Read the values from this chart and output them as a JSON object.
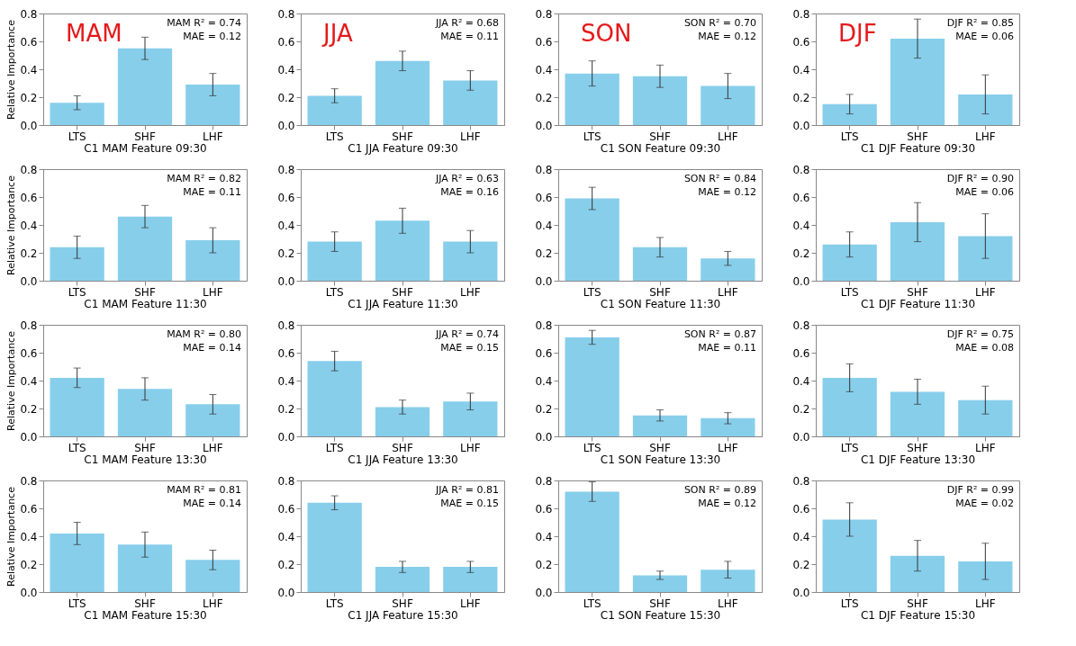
{
  "chart_data": [
    {
      "type": "bar",
      "categories": [
        "LTS",
        "SHF",
        "LHF"
      ],
      "values": [
        0.16,
        0.55,
        0.29
      ],
      "errors": [
        0.05,
        0.08,
        0.08
      ],
      "color": "#87ceeb",
      "xlabel": "C1 MAM Feature 09:30",
      "ylabel": "Relative Importance",
      "ylim": [
        0,
        0.8
      ],
      "yticks": [
        {
          "value": 0,
          "label": "0.0"
        },
        0.2,
        0.4,
        0.6,
        0.8
      ],
      "grid": false,
      "annotations": [
        "MAM",
        "MAM R² = 0.74",
        "MAE = 0.12"
      ]
    },
    {
      "type": "bar",
      "categories": [
        "LTS",
        "SHF",
        "LHF"
      ],
      "values": [
        0.21,
        0.46,
        0.32
      ],
      "errors": [
        0.05,
        0.07,
        0.07
      ],
      "color": "#87ceeb",
      "xlabel": "C1 JJA Feature 09:30",
      "ylim": [
        0,
        0.8
      ],
      "yticks": [
        {
          "value": 0,
          "label": "0.0"
        },
        0.2,
        0.4,
        0.6,
        0.8
      ],
      "grid": false,
      "annotations": [
        "JJA",
        "JJA R² = 0.68",
        "MAE = 0.11"
      ]
    },
    {
      "type": "bar",
      "categories": [
        "LTS",
        "SHF",
        "LHF"
      ],
      "values": [
        0.37,
        0.35,
        0.28
      ],
      "errors": [
        0.09,
        0.08,
        0.09
      ],
      "color": "#87ceeb",
      "xlabel": "C1 SON Feature 09:30",
      "ylim": [
        0,
        0.8
      ],
      "yticks": [
        {
          "value": 0,
          "label": "0.0"
        },
        0.2,
        0.4,
        0.6,
        0.8
      ],
      "grid": false,
      "annotations": [
        "SON",
        "SON R² = 0.70",
        "MAE = 0.12"
      ]
    },
    {
      "type": "bar",
      "categories": [
        "LTS",
        "SHF",
        "LHF"
      ],
      "values": [
        0.15,
        0.62,
        0.22
      ],
      "errors": [
        0.07,
        0.14,
        0.14
      ],
      "color": "#87ceeb",
      "xlabel": "C1 DJF Feature 09:30",
      "ylim": [
        0,
        0.8
      ],
      "yticks": [
        {
          "value": 0,
          "label": "0.0"
        },
        0.2,
        0.4,
        0.6,
        0.8
      ],
      "grid": false,
      "annotations": [
        "DJF",
        "DJF R² = 0.85",
        "MAE = 0.06"
      ]
    },
    {
      "type": "bar",
      "categories": [
        "LTS",
        "SHF",
        "LHF"
      ],
      "values": [
        0.24,
        0.46,
        0.29
      ],
      "errors": [
        0.08,
        0.08,
        0.09
      ],
      "color": "#87ceeb",
      "xlabel": "C1 MAM Feature 11:30",
      "ylabel": "Relative Importance",
      "ylim": [
        0,
        0.8
      ],
      "yticks": [
        {
          "value": 0,
          "label": "0.0"
        },
        0.2,
        0.4,
        0.6,
        0.8
      ],
      "grid": false,
      "annotations": [
        "MAM R² = 0.82",
        "MAE = 0.11"
      ]
    },
    {
      "type": "bar",
      "categories": [
        "LTS",
        "SHF",
        "LHF"
      ],
      "values": [
        0.28,
        0.43,
        0.28
      ],
      "errors": [
        0.07,
        0.09,
        0.08
      ],
      "color": "#87ceeb",
      "xlabel": "C1 JJA Feature 11:30",
      "ylim": [
        0,
        0.8
      ],
      "yticks": [
        {
          "value": 0,
          "label": "0.0"
        },
        0.2,
        0.4,
        0.6,
        0.8
      ],
      "grid": false,
      "annotations": [
        "JJA R² = 0.63",
        "MAE = 0.16"
      ]
    },
    {
      "type": "bar",
      "categories": [
        "LTS",
        "SHF",
        "LHF"
      ],
      "values": [
        0.59,
        0.24,
        0.16
      ],
      "errors": [
        0.08,
        0.07,
        0.05
      ],
      "color": "#87ceeb",
      "xlabel": "C1 SON Feature 11:30",
      "ylim": [
        0,
        0.8
      ],
      "yticks": [
        {
          "value": 0,
          "label": "0.0"
        },
        0.2,
        0.4,
        0.6,
        0.8
      ],
      "grid": false,
      "annotations": [
        "SON R² = 0.84",
        "MAE = 0.12"
      ]
    },
    {
      "type": "bar",
      "categories": [
        "LTS",
        "SHF",
        "LHF"
      ],
      "values": [
        0.26,
        0.42,
        0.32
      ],
      "errors": [
        0.09,
        0.14,
        0.16
      ],
      "color": "#87ceeb",
      "xlabel": "C1 DJF Feature 11:30",
      "ylim": [
        0,
        0.8
      ],
      "yticks": [
        {
          "value": 0,
          "label": "0.0"
        },
        0.2,
        0.4,
        0.6,
        0.8
      ],
      "grid": false,
      "annotations": [
        "DJF R² = 0.90",
        "MAE = 0.06"
      ]
    },
    {
      "type": "bar",
      "categories": [
        "LTS",
        "SHF",
        "LHF"
      ],
      "values": [
        0.42,
        0.34,
        0.23
      ],
      "errors": [
        0.07,
        0.08,
        0.07
      ],
      "color": "#87ceeb",
      "xlabel": "C1 MAM Feature 13:30",
      "ylabel": "Relative Importance",
      "ylim": [
        0,
        0.8
      ],
      "yticks": [
        {
          "value": 0,
          "label": "0.0"
        },
        0.2,
        0.4,
        0.6,
        0.8
      ],
      "grid": false,
      "annotations": [
        "MAM R² = 0.80",
        "MAE = 0.14"
      ]
    },
    {
      "type": "bar",
      "categories": [
        "LTS",
        "SHF",
        "LHF"
      ],
      "values": [
        0.54,
        0.21,
        0.25
      ],
      "errors": [
        0.07,
        0.05,
        0.06
      ],
      "color": "#87ceeb",
      "xlabel": "C1 JJA Feature 13:30",
      "ylim": [
        0,
        0.8
      ],
      "yticks": [
        {
          "value": 0,
          "label": "0.0"
        },
        0.2,
        0.4,
        0.6,
        0.8
      ],
      "grid": false,
      "annotations": [
        "JJA R² = 0.74",
        "MAE = 0.15"
      ]
    },
    {
      "type": "bar",
      "categories": [
        "LTS",
        "SHF",
        "LHF"
      ],
      "values": [
        0.71,
        0.15,
        0.13
      ],
      "errors": [
        0.05,
        0.04,
        0.04
      ],
      "color": "#87ceeb",
      "xlabel": "C1 SON Feature 13:30",
      "ylim": [
        0,
        0.8
      ],
      "yticks": [
        {
          "value": 0,
          "label": "0.0"
        },
        0.2,
        0.4,
        0.6,
        0.8
      ],
      "grid": false,
      "annotations": [
        "SON R² = 0.87",
        "MAE = 0.11"
      ]
    },
    {
      "type": "bar",
      "categories": [
        "LTS",
        "SHF",
        "LHF"
      ],
      "values": [
        0.42,
        0.32,
        0.26
      ],
      "errors": [
        0.1,
        0.09,
        0.1
      ],
      "color": "#87ceeb",
      "xlabel": "C1 DJF Feature 13:30",
      "ylim": [
        0,
        0.8
      ],
      "yticks": [
        {
          "value": 0,
          "label": "0.0"
        },
        0.2,
        0.4,
        0.6,
        0.8
      ],
      "grid": false,
      "annotations": [
        "DJF R² = 0.75",
        "MAE = 0.08"
      ]
    },
    {
      "type": "bar",
      "categories": [
        "LTS",
        "SHF",
        "LHF"
      ],
      "values": [
        0.42,
        0.34,
        0.23
      ],
      "errors": [
        0.08,
        0.09,
        0.07
      ],
      "color": "#87ceeb",
      "xlabel": "C1 MAM Feature 15:30",
      "ylabel": "Relative Importance",
      "ylim": [
        0,
        0.8
      ],
      "yticks": [
        {
          "value": 0,
          "label": "0.0"
        },
        0.2,
        0.4,
        0.6,
        0.8
      ],
      "grid": false,
      "annotations": [
        "MAM R² = 0.81",
        "MAE = 0.14"
      ]
    },
    {
      "type": "bar",
      "categories": [
        "LTS",
        "SHF",
        "LHF"
      ],
      "values": [
        0.64,
        0.18,
        0.18
      ],
      "errors": [
        0.05,
        0.04,
        0.04
      ],
      "color": "#87ceeb",
      "xlabel": "C1 JJA Feature 15:30",
      "ylim": [
        0,
        0.8
      ],
      "yticks": [
        {
          "value": 0,
          "label": "0.0"
        },
        0.2,
        0.4,
        0.6,
        0.8
      ],
      "grid": false,
      "annotations": [
        "JJA R² = 0.81",
        "MAE = 0.15"
      ]
    },
    {
      "type": "bar",
      "categories": [
        "LTS",
        "SHF",
        "LHF"
      ],
      "values": [
        0.72,
        0.12,
        0.16
      ],
      "errors": [
        0.07,
        0.03,
        0.06
      ],
      "color": "#87ceeb",
      "xlabel": "C1 SON Feature 15:30",
      "ylim": [
        0,
        0.8
      ],
      "yticks": [
        {
          "value": 0,
          "label": "0.0"
        },
        0.2,
        0.4,
        0.6,
        0.8
      ],
      "grid": false,
      "annotations": [
        "SON R² = 0.89",
        "MAE = 0.12"
      ]
    },
    {
      "type": "bar",
      "categories": [
        "LTS",
        "SHF",
        "LHF"
      ],
      "values": [
        0.52,
        0.26,
        0.22
      ],
      "errors": [
        0.12,
        0.11,
        0.13
      ],
      "color": "#87ceeb",
      "xlabel": "C1 DJF Feature 15:30",
      "ylim": [
        0,
        0.8
      ],
      "yticks": [
        {
          "value": 0,
          "label": "0.0"
        },
        0.2,
        0.4,
        0.6,
        0.8
      ],
      "grid": false,
      "annotations": [
        "DJF R² = 0.99",
        "MAE = 0.02"
      ]
    }
  ]
}
